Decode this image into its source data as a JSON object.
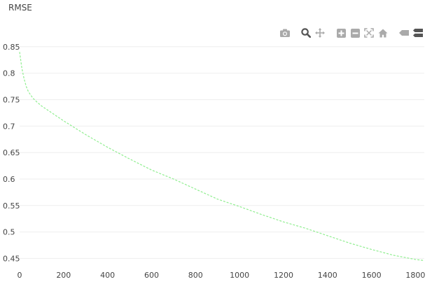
{
  "chart_title": "RMSE",
  "modebar": {
    "icons": [
      "camera-icon",
      "zoom-icon",
      "pan-icon",
      "zoom-in-icon",
      "zoom-out-icon",
      "autoscale-icon",
      "reset-axes-icon",
      "hover-closest-icon",
      "hover-compare-icon"
    ]
  },
  "colors": {
    "line": "#90ee90",
    "grid": "#eeeeee",
    "text": "#444444",
    "icon": "#aaaaaa",
    "icon_active": "#666666"
  },
  "chart_data": {
    "type": "line",
    "title": "RMSE",
    "xlabel": "",
    "ylabel": "",
    "xlim": [
      0,
      1840
    ],
    "ylim": [
      0.44,
      0.855
    ],
    "xticks": [
      0,
      200,
      400,
      600,
      800,
      1000,
      1200,
      1400,
      1600,
      1800
    ],
    "yticks": [
      0.45,
      0.5,
      0.55,
      0.6,
      0.65,
      0.7,
      0.75,
      0.8,
      0.85
    ],
    "ytick_labels": [
      "0.45",
      "0.5",
      "0.55",
      "0.6",
      "0.65",
      "0.7",
      "0.75",
      "0.8",
      "0.85"
    ],
    "grid": true,
    "series": [
      {
        "line_style": "dashed",
        "x": [
          0,
          10,
          20,
          30,
          40,
          60,
          80,
          100,
          150,
          200,
          300,
          400,
          500,
          600,
          700,
          800,
          900,
          1000,
          1100,
          1200,
          1300,
          1400,
          1500,
          1600,
          1700,
          1800,
          1840
        ],
        "y": [
          0.84,
          0.81,
          0.79,
          0.775,
          0.765,
          0.753,
          0.745,
          0.738,
          0.724,
          0.71,
          0.684,
          0.66,
          0.638,
          0.617,
          0.6,
          0.581,
          0.562,
          0.548,
          0.533,
          0.519,
          0.507,
          0.493,
          0.479,
          0.467,
          0.456,
          0.448,
          0.446
        ]
      }
    ]
  }
}
